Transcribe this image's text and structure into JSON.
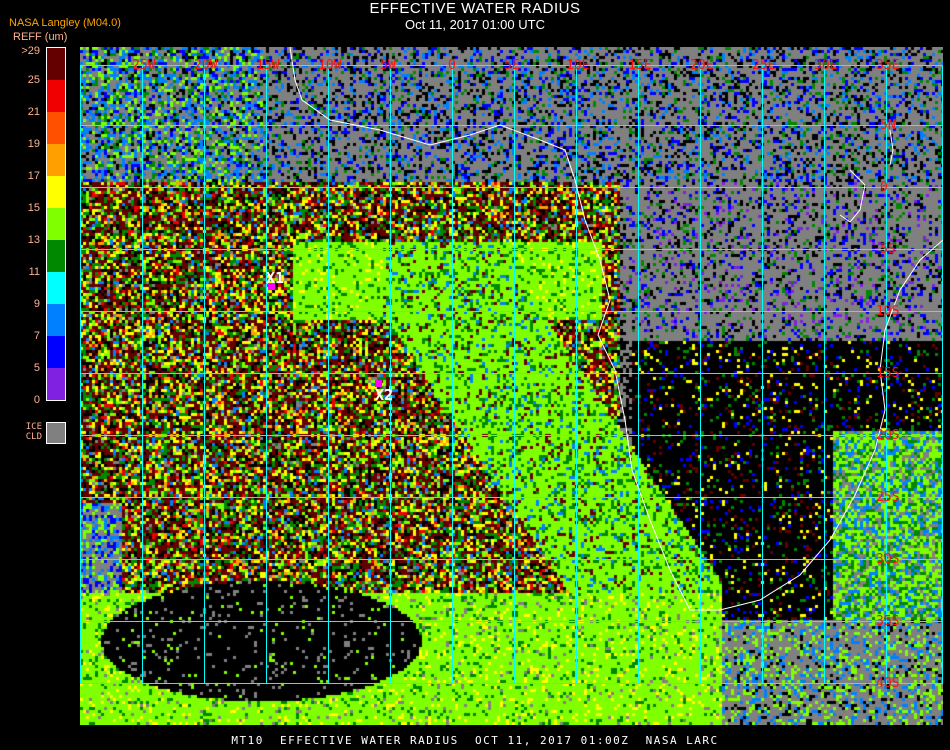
{
  "header": {
    "title": "EFFECTIVE WATER RADIUS",
    "subtitle": "Oct 11, 2017 01:00 UTC",
    "organization": "NASA Langley (M04.0)"
  },
  "colorbar": {
    "title": "REFF (um)",
    "segments": [
      {
        "label": ">29",
        "color": "#640000"
      },
      {
        "label": "25",
        "color": "#f00000"
      },
      {
        "label": "21",
        "color": "#ff5000"
      },
      {
        "label": "19",
        "color": "#ffa000"
      },
      {
        "label": "17",
        "color": "#ffff00"
      },
      {
        "label": "15",
        "color": "#80ff00"
      },
      {
        "label": "13",
        "color": "#008800"
      },
      {
        "label": "11",
        "color": "#00ffff"
      },
      {
        "label": "9",
        "color": "#0080ff"
      },
      {
        "label": "7",
        "color": "#0000ff"
      },
      {
        "label": "5",
        "color": "#8020e0"
      }
    ],
    "bottom_label": "0",
    "ice_label_1": "ICE",
    "ice_label_2": "CLD",
    "ice_color": "#808080"
  },
  "map": {
    "grid_color": "#00ffff",
    "coast_color": "#ffffff",
    "label_color": "#ff1010",
    "longitudes": [
      "25W",
      "20W",
      "15W",
      "10W",
      "5W",
      "0",
      "5E",
      "10E",
      "15E",
      "20E",
      "25E",
      "30E",
      "35E"
    ],
    "latitudes": [
      "5N",
      "0",
      "5S",
      "10S",
      "15S",
      "20S",
      "25S",
      "30S",
      "35S",
      "40S"
    ],
    "markers": [
      {
        "label": "X1",
        "color": "#ff00ff"
      },
      {
        "label": "X2",
        "color": "#ff00ff"
      }
    ]
  },
  "footer": {
    "text": "MT10  EFFECTIVE WATER RADIUS  OCT 11, 2017 01:00Z  NASA LARC"
  }
}
